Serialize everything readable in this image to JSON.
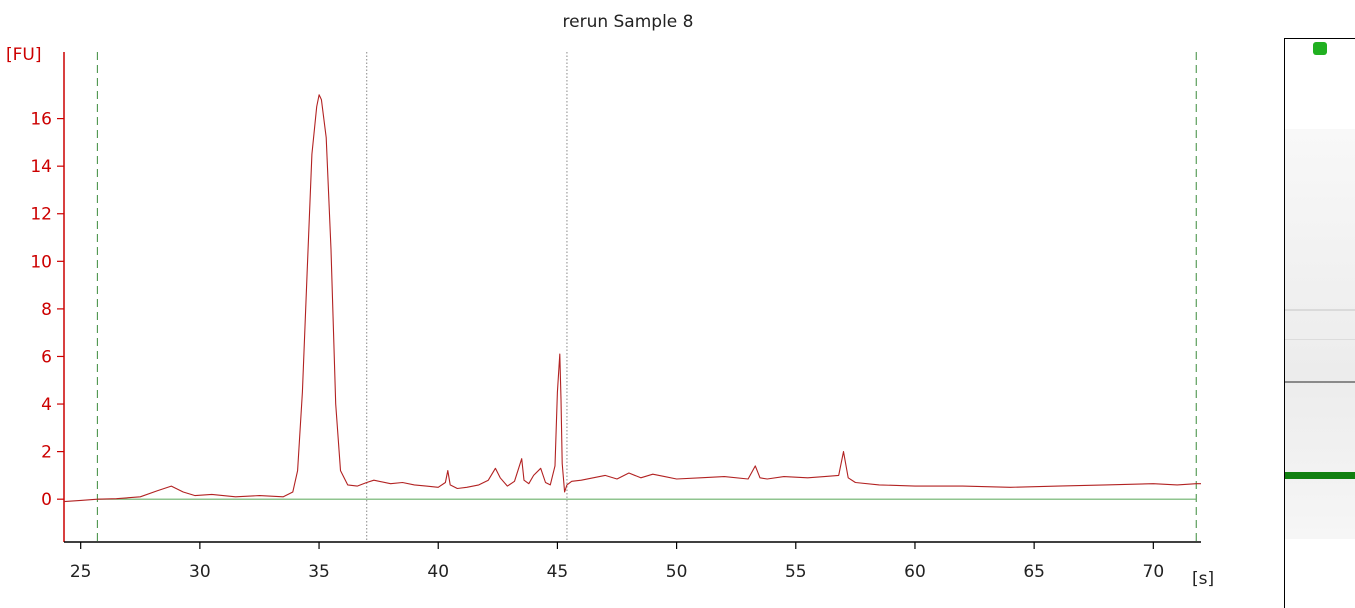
{
  "chart_data": {
    "type": "line",
    "title": "rerun Sample 8",
    "ylabel": "[FU]",
    "xlabel": "[s]",
    "xlim": [
      24.3,
      72.0
    ],
    "ylim": [
      -1.8,
      18.8
    ],
    "xticks": [
      25,
      30,
      35,
      40,
      45,
      50,
      55,
      60,
      65,
      70
    ],
    "yticks": [
      0,
      2,
      4,
      6,
      8,
      10,
      12,
      14,
      16
    ],
    "grid": false,
    "baseline": 0,
    "series": [
      {
        "color": "#b22222",
        "x": [
          24.3,
          25.0,
          25.7,
          26.5,
          27.5,
          28.2,
          28.8,
          29.3,
          29.8,
          30.5,
          31.5,
          32.5,
          33.5,
          33.9,
          34.1,
          34.3,
          34.5,
          34.7,
          34.9,
          35.0,
          35.1,
          35.3,
          35.5,
          35.7,
          35.9,
          36.2,
          36.6,
          37.0,
          37.3,
          38.0,
          38.5,
          39.0,
          39.5,
          40.0,
          40.3,
          40.4,
          40.5,
          40.8,
          41.2,
          41.7,
          42.1,
          42.4,
          42.6,
          42.9,
          43.2,
          43.5,
          43.6,
          43.8,
          44.0,
          44.3,
          44.5,
          44.7,
          44.9,
          45.0,
          45.1,
          45.15,
          45.2,
          45.3,
          45.4,
          45.6,
          46.0,
          46.5,
          47.0,
          47.5,
          48.0,
          48.5,
          49.0,
          49.5,
          50.0,
          51.0,
          52.0,
          53.0,
          53.3,
          53.5,
          53.8,
          54.5,
          55.5,
          56.2,
          56.8,
          57.0,
          57.2,
          57.5,
          58.5,
          60.0,
          62.0,
          64.0,
          66.0,
          68.0,
          70.0,
          71.0,
          71.8,
          72.0
        ],
        "y": [
          -0.1,
          -0.05,
          0.0,
          0.02,
          0.1,
          0.35,
          0.55,
          0.3,
          0.15,
          0.2,
          0.1,
          0.15,
          0.1,
          0.3,
          1.2,
          4.5,
          9.5,
          14.5,
          16.5,
          17.0,
          16.8,
          15.2,
          10.5,
          4.0,
          1.2,
          0.6,
          0.55,
          0.7,
          0.8,
          0.65,
          0.7,
          0.6,
          0.55,
          0.5,
          0.7,
          1.2,
          0.6,
          0.45,
          0.5,
          0.6,
          0.8,
          1.3,
          0.9,
          0.55,
          0.75,
          1.7,
          0.8,
          0.65,
          1.0,
          1.3,
          0.7,
          0.6,
          1.4,
          4.5,
          6.1,
          4.2,
          1.5,
          0.3,
          0.6,
          0.75,
          0.8,
          0.9,
          1.0,
          0.85,
          1.1,
          0.9,
          1.05,
          0.95,
          0.85,
          0.9,
          0.95,
          0.85,
          1.4,
          0.9,
          0.85,
          0.95,
          0.9,
          0.95,
          1.0,
          2.0,
          0.9,
          0.7,
          0.6,
          0.55,
          0.55,
          0.5,
          0.55,
          0.6,
          0.65,
          0.6,
          0.65,
          0.65
        ]
      }
    ],
    "markers": {
      "dashed_green_x": [
        25.7,
        71.8
      ],
      "dotted_gray_x": [
        37.0,
        45.4
      ]
    }
  },
  "gel": {
    "marker_color": "#20b020",
    "lower_band_color": "#108010"
  }
}
